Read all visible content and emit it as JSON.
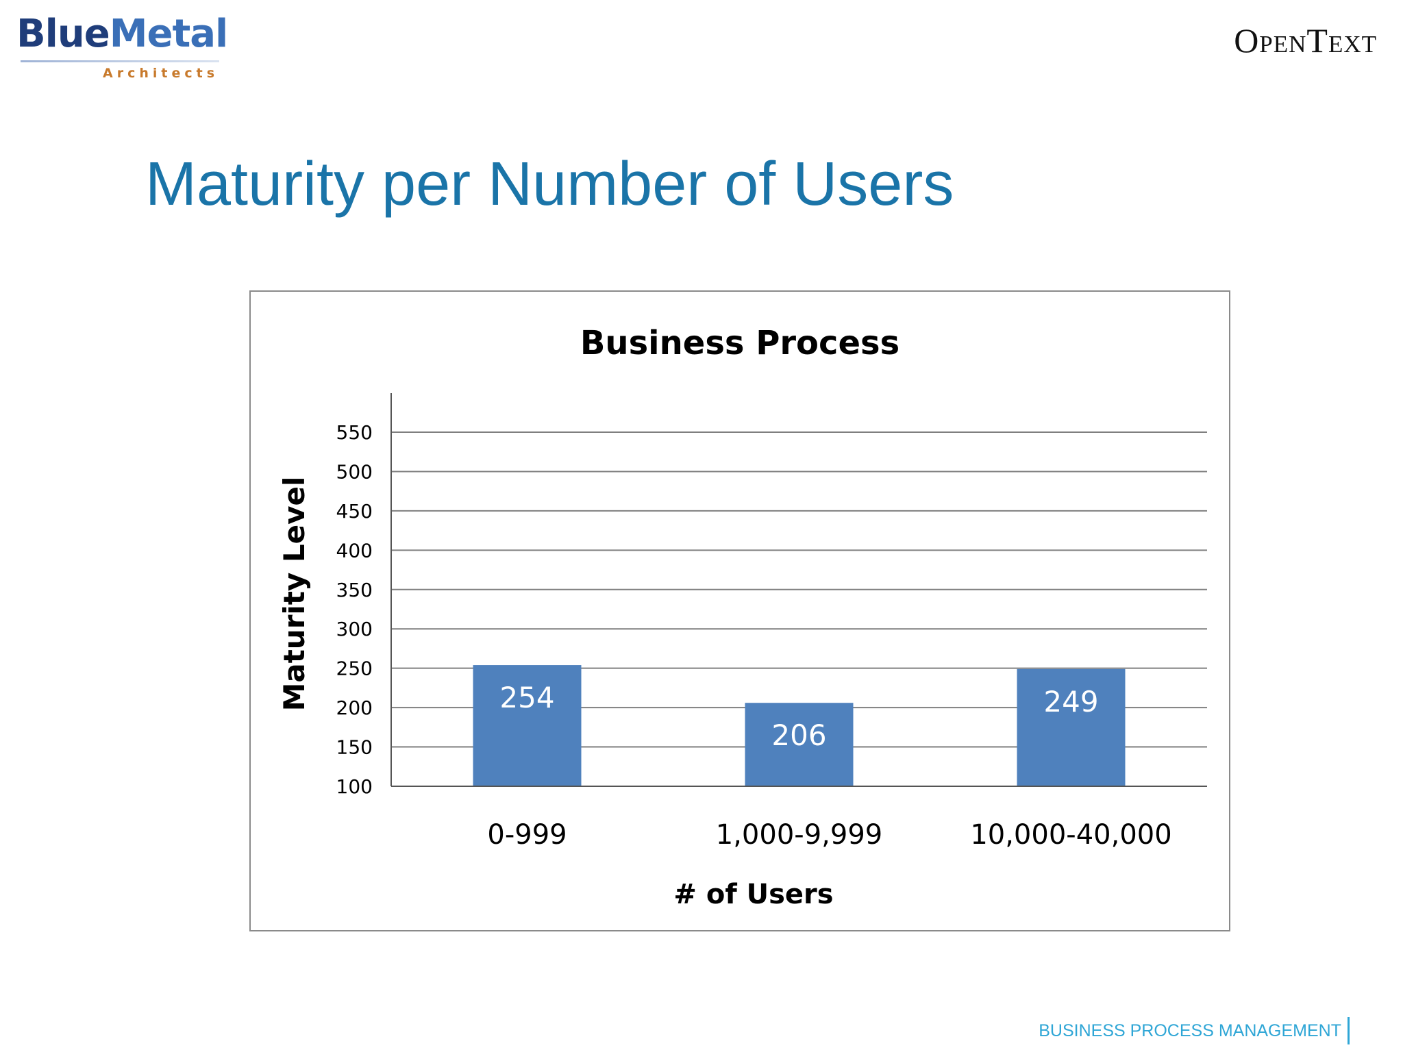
{
  "logos": {
    "left": {
      "word1": "Blue",
      "word2": "Metal",
      "sub": "Architects"
    },
    "right": {
      "text": "OpenText"
    }
  },
  "slide": {
    "title": "Maturity per Number of Users",
    "footer": "BUSINESS PROCESS MANAGEMENT"
  },
  "colors": {
    "bar": "#4f81bd",
    "title": "#1a74a8",
    "footer": "#2fa6d6"
  },
  "chart_data": {
    "type": "bar",
    "title": "Business Process",
    "xlabel": "# of Users",
    "ylabel": "Maturity Level",
    "categories": [
      "0-999",
      "1,000-9,999",
      "10,000-40,000"
    ],
    "values": [
      254,
      206,
      249
    ],
    "data_labels": [
      "254",
      "206",
      "249"
    ],
    "ylim": [
      100,
      550
    ],
    "yticks": [
      100,
      150,
      200,
      250,
      300,
      350,
      400,
      450,
      500,
      550
    ],
    "grid": true,
    "legend": "none"
  }
}
